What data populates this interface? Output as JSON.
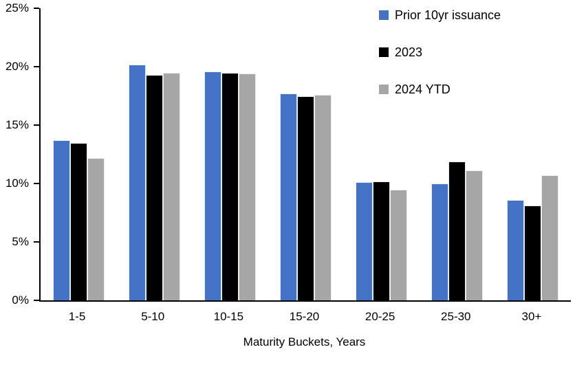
{
  "chart_data": {
    "type": "bar",
    "title": "",
    "xlabel": "Maturity Buckets, Years",
    "ylabel": "",
    "categories": [
      "1-5",
      "5-10",
      "10-15",
      "15-20",
      "20-25",
      "25-30",
      "30+"
    ],
    "series": [
      {
        "name": "Prior 10yr issuance",
        "color": "#4472C4",
        "values": [
          13.7,
          20.2,
          19.6,
          17.7,
          10.1,
          10.0,
          8.6
        ]
      },
      {
        "name": "2023",
        "color": "#000000",
        "values": [
          13.5,
          19.3,
          19.5,
          17.5,
          10.2,
          11.9,
          8.1
        ]
      },
      {
        "name": "2024 YTD",
        "color": "#A6A6A6",
        "values": [
          12.2,
          19.5,
          19.4,
          17.6,
          9.5,
          11.1,
          10.7
        ]
      }
    ],
    "ylim": [
      0,
      25
    ],
    "y_ticks": [
      "0%",
      "5%",
      "10%",
      "15%",
      "20%",
      "25%"
    ],
    "grid": false,
    "legend_position": "top-right",
    "axis_color": "#000000"
  }
}
